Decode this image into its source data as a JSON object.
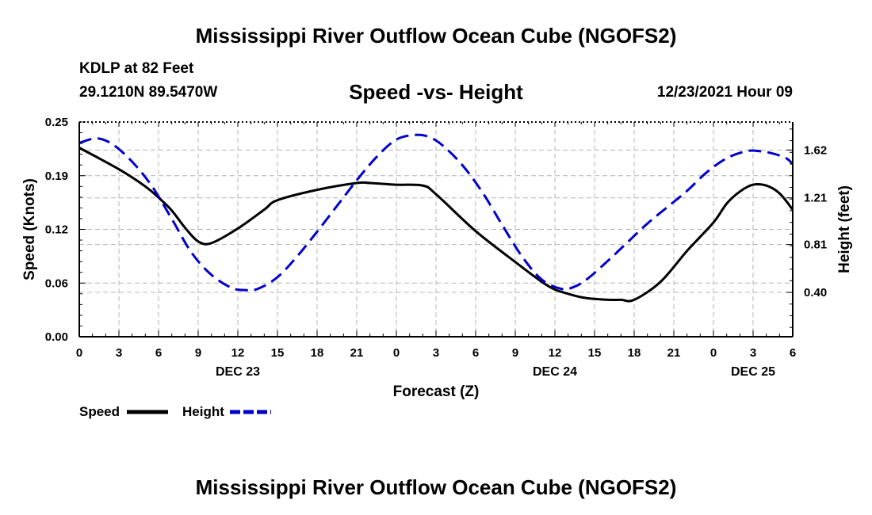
{
  "header": {
    "title": "Mississippi River Outflow Ocean Cube (NGOFS2)",
    "station": "KDLP at 82 Feet",
    "coords": "29.1210N  89.5470W",
    "subtitle": "Speed -vs- Height",
    "datetime": "12/23/2021 Hour 09"
  },
  "footer": {
    "title": "Mississippi River Outflow Ocean Cube (NGOFS2)"
  },
  "colors": {
    "speed": "#000000",
    "height": "#0000cc",
    "grid": "#b4b4b4"
  },
  "chart_data": {
    "type": "line",
    "xlabel": "Forecast (Z)",
    "ylabel": "Speed (Knots)",
    "y2label": "Height (feet)",
    "xlim": [
      0,
      54
    ],
    "ylim": [
      0,
      0.25
    ],
    "y2lim": [
      0.02,
      1.86
    ],
    "x_ticks": [
      0,
      3,
      6,
      9,
      12,
      15,
      18,
      21,
      24,
      27,
      30,
      33,
      36,
      39,
      42,
      45,
      48,
      51,
      54
    ],
    "x_tick_labels": [
      "0",
      "3",
      "6",
      "9",
      "12",
      "15",
      "18",
      "21",
      "0",
      "3",
      "6",
      "9",
      "12",
      "15",
      "18",
      "21",
      "0",
      "3",
      "6"
    ],
    "date_labels": [
      {
        "x": 12,
        "label": "DEC 23"
      },
      {
        "x": 36,
        "label": "DEC 24"
      },
      {
        "x": 51,
        "label": "DEC 25"
      }
    ],
    "y_ticks": [
      0.0,
      0.0625,
      0.125,
      0.1875,
      0.25
    ],
    "y_tick_labels": [
      "0.00",
      "0.06",
      "0.12",
      "0.19",
      "0.25"
    ],
    "y2_ticks": [
      0.4,
      0.81,
      1.21,
      1.62
    ],
    "y2_tick_labels": [
      "0.40",
      "0.81",
      "1.21",
      "1.62"
    ],
    "grid": true,
    "series": [
      {
        "name": "Speed",
        "axis": "left",
        "style": "solid",
        "x": [
          0,
          3,
          5,
          6,
          7,
          8,
          9,
          10,
          12,
          14,
          15,
          18,
          21,
          22,
          24,
          26,
          27,
          30,
          33,
          35,
          36,
          37,
          38,
          39,
          40,
          41,
          42,
          44,
          46,
          48,
          49,
          50,
          51,
          52,
          53,
          54
        ],
        "values": [
          0.22,
          0.195,
          0.175,
          0.162,
          0.147,
          0.127,
          0.111,
          0.109,
          0.126,
          0.148,
          0.159,
          0.171,
          0.179,
          0.179,
          0.177,
          0.176,
          0.166,
          0.123,
          0.087,
          0.064,
          0.055,
          0.05,
          0.046,
          0.044,
          0.043,
          0.043,
          0.043,
          0.064,
          0.1,
          0.133,
          0.155,
          0.169,
          0.177,
          0.176,
          0.167,
          0.148
        ]
      },
      {
        "name": "Height",
        "axis": "right",
        "style": "dashed",
        "x": [
          0,
          1.3,
          2.5,
          4,
          5.5,
          7,
          8.5,
          10,
          11.5,
          12.5,
          13.5,
          15,
          16.5,
          18,
          19.5,
          21,
          22.5,
          24,
          25.5,
          26.5,
          27.5,
          29,
          30.5,
          32,
          33.5,
          35,
          36.5,
          37.5,
          38.5,
          40,
          41.5,
          43,
          44.5,
          46,
          47.5,
          49,
          50.5,
          51.5,
          52.5,
          53.5,
          54
        ],
        "values": [
          1.68,
          1.72,
          1.67,
          1.52,
          1.31,
          1.03,
          0.74,
          0.55,
          0.44,
          0.42,
          0.43,
          0.53,
          0.71,
          0.92,
          1.14,
          1.36,
          1.56,
          1.71,
          1.75,
          1.73,
          1.66,
          1.49,
          1.26,
          0.98,
          0.71,
          0.51,
          0.43,
          0.45,
          0.52,
          0.67,
          0.83,
          0.99,
          1.13,
          1.27,
          1.43,
          1.55,
          1.61,
          1.61,
          1.59,
          1.55,
          1.5
        ]
      }
    ]
  }
}
